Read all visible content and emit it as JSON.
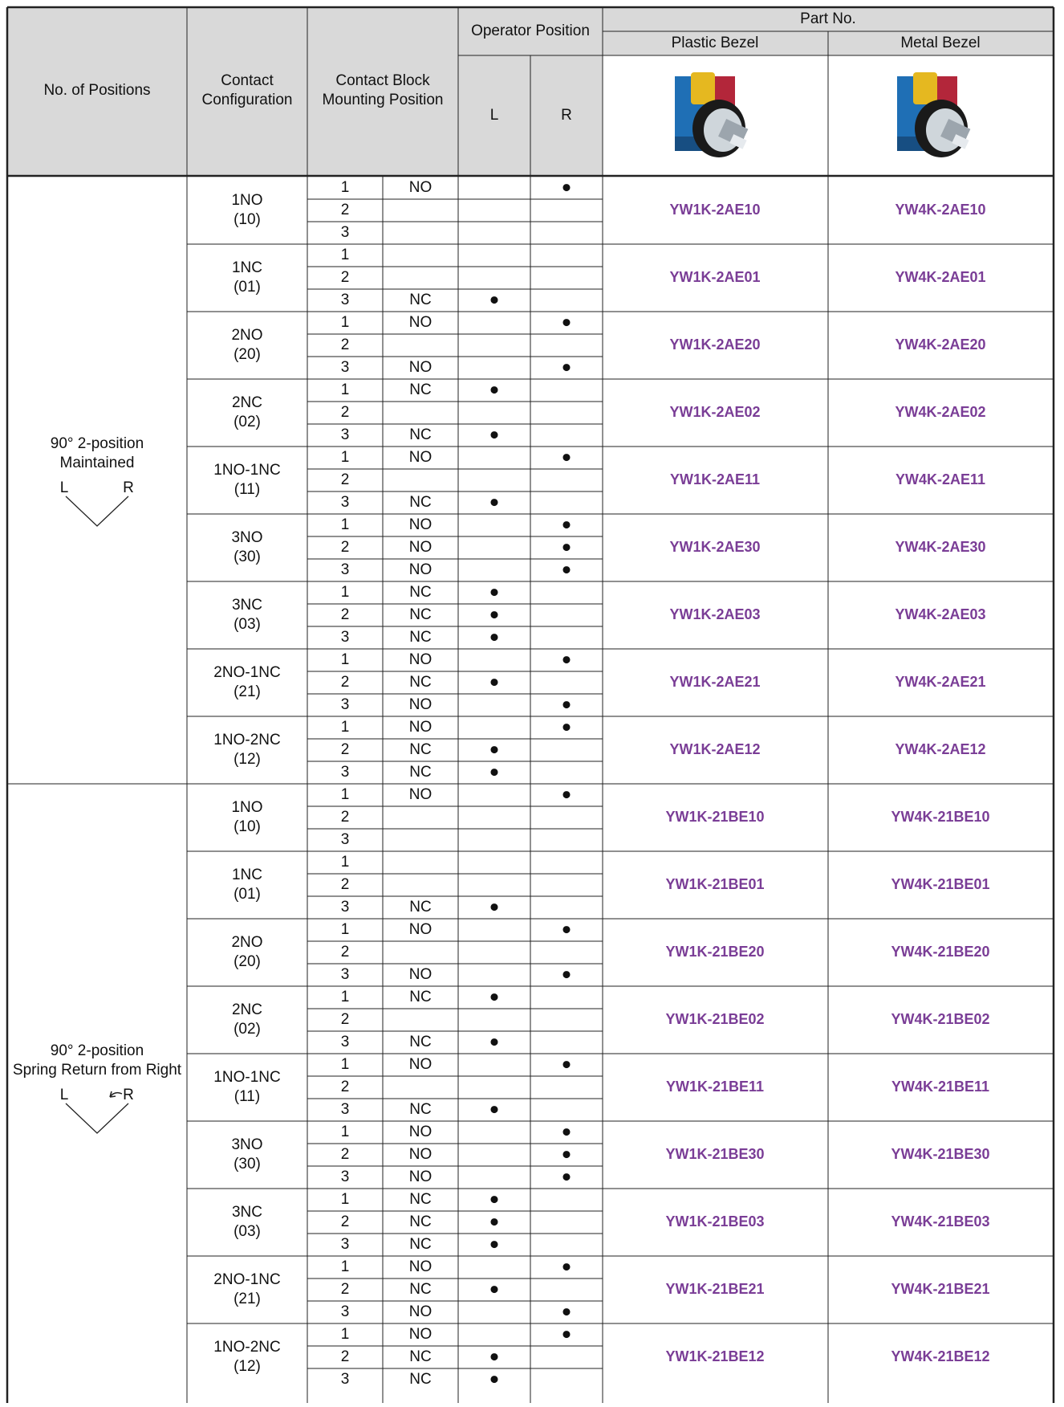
{
  "header": {
    "positions": "No. of Positions",
    "configuration": [
      "Contact",
      "Configuration"
    ],
    "mounting": [
      "Contact Block",
      "Mounting Position"
    ],
    "operator": "Operator Position",
    "left": "L",
    "right": "R",
    "part_no": "Part No.",
    "plastic": "Plastic Bezel",
    "metal": "Metal Bezel"
  },
  "groups": [
    {
      "label": [
        "90° 2-position",
        "Maintained"
      ],
      "left": "L",
      "right": "R",
      "configs": [
        {
          "label": [
            "1NO",
            "(10)"
          ],
          "rows": [
            {
              "position": "1",
              "contact": "NO",
              "R": "●"
            },
            {
              "position": "2"
            },
            {
              "position": "3"
            }
          ],
          "plastic": "YW1K-2AE10",
          "metal": "YW4K-2AE10"
        },
        {
          "label": [
            "1NC",
            "(01)"
          ],
          "rows": [
            {
              "position": "1"
            },
            {
              "position": "2"
            },
            {
              "position": "3",
              "contact": "NC",
              "L": "●"
            }
          ],
          "plastic": "YW1K-2AE01",
          "metal": "YW4K-2AE01"
        },
        {
          "label": [
            "2NO",
            "(20)"
          ],
          "rows": [
            {
              "position": "1",
              "contact": "NO",
              "R": "●"
            },
            {
              "position": "2"
            },
            {
              "position": "3",
              "contact": "NO",
              "R": "●"
            }
          ],
          "plastic": "YW1K-2AE20",
          "metal": "YW4K-2AE20"
        },
        {
          "label": [
            "2NC",
            "(02)"
          ],
          "rows": [
            {
              "position": "1",
              "contact": "NC",
              "L": "●"
            },
            {
              "position": "2"
            },
            {
              "position": "3",
              "contact": "NC",
              "L": "●"
            }
          ],
          "plastic": "YW1K-2AE02",
          "metal": "YW4K-2AE02"
        },
        {
          "label": [
            "1NO-1NC",
            "(11)"
          ],
          "rows": [
            {
              "position": "1",
              "contact": "NO",
              "R": "●"
            },
            {
              "position": "2"
            },
            {
              "position": "3",
              "contact": "NC",
              "L": "●"
            }
          ],
          "plastic": "YW1K-2AE11",
          "metal": "YW4K-2AE11"
        },
        {
          "label": [
            "3NO",
            "(30)"
          ],
          "rows": [
            {
              "position": "1",
              "contact": "NO",
              "R": "●"
            },
            {
              "position": "2",
              "contact": "NO",
              "R": "●"
            },
            {
              "position": "3",
              "contact": "NO",
              "R": "●"
            }
          ],
          "plastic": "YW1K-2AE30",
          "metal": "YW4K-2AE30"
        },
        {
          "label": [
            "3NC",
            "(03)"
          ],
          "rows": [
            {
              "position": "1",
              "contact": "NC",
              "L": "●"
            },
            {
              "position": "2",
              "contact": "NC",
              "L": "●"
            },
            {
              "position": "3",
              "contact": "NC",
              "L": "●"
            }
          ],
          "plastic": "YW1K-2AE03",
          "metal": "YW4K-2AE03"
        },
        {
          "label": [
            "2NO-1NC",
            "(21)"
          ],
          "rows": [
            {
              "position": "1",
              "contact": "NO",
              "R": "●"
            },
            {
              "position": "2",
              "contact": "NC",
              "L": "●"
            },
            {
              "position": "3",
              "contact": "NO",
              "R": "●"
            }
          ],
          "plastic": "YW1K-2AE21",
          "metal": "YW4K-2AE21"
        },
        {
          "label": [
            "1NO-2NC",
            "(12)"
          ],
          "rows": [
            {
              "position": "1",
              "contact": "NO",
              "R": "●"
            },
            {
              "position": "2",
              "contact": "NC",
              "L": "●"
            },
            {
              "position": "3",
              "contact": "NC",
              "L": "●"
            }
          ],
          "plastic": "YW1K-2AE12",
          "metal": "YW4K-2AE12"
        }
      ]
    },
    {
      "label": [
        "90° 2-position",
        "Spring Return from Right"
      ],
      "left": "L",
      "right": "R",
      "configs": [
        {
          "label": [
            "1NO",
            "(10)"
          ],
          "rows": [
            {
              "position": "1",
              "contact": "NO",
              "R": "●"
            },
            {
              "position": "2"
            },
            {
              "position": "3"
            }
          ],
          "plastic": "YW1K-21BE10",
          "metal": "YW4K-21BE10"
        },
        {
          "label": [
            "1NC",
            "(01)"
          ],
          "rows": [
            {
              "position": "1"
            },
            {
              "position": "2"
            },
            {
              "position": "3",
              "contact": "NC",
              "L": "●"
            }
          ],
          "plastic": "YW1K-21BE01",
          "metal": "YW4K-21BE01"
        },
        {
          "label": [
            "2NO",
            "(20)"
          ],
          "rows": [
            {
              "position": "1",
              "contact": "NO",
              "R": "●"
            },
            {
              "position": "2"
            },
            {
              "position": "3",
              "contact": "NO",
              "R": "●"
            }
          ],
          "plastic": "YW1K-21BE20",
          "metal": "YW4K-21BE20"
        },
        {
          "label": [
            "2NC",
            "(02)"
          ],
          "rows": [
            {
              "position": "1",
              "contact": "NC",
              "L": "●"
            },
            {
              "position": "2"
            },
            {
              "position": "3",
              "contact": "NC",
              "L": "●"
            }
          ],
          "plastic": "YW1K-21BE02",
          "metal": "YW4K-21BE02"
        },
        {
          "label": [
            "1NO-1NC",
            "(11)"
          ],
          "rows": [
            {
              "position": "1",
              "contact": "NO",
              "R": "●"
            },
            {
              "position": "2"
            },
            {
              "position": "3",
              "contact": "NC",
              "L": "●"
            }
          ],
          "plastic": "YW1K-21BE11",
          "metal": "YW4K-21BE11"
        },
        {
          "label": [
            "3NO",
            "(30)"
          ],
          "rows": [
            {
              "position": "1",
              "contact": "NO",
              "R": "●"
            },
            {
              "position": "2",
              "contact": "NO",
              "R": "●"
            },
            {
              "position": "3",
              "contact": "NO",
              "R": "●"
            }
          ],
          "plastic": "YW1K-21BE30",
          "metal": "YW4K-21BE30"
        },
        {
          "label": [
            "3NC",
            "(03)"
          ],
          "rows": [
            {
              "position": "1",
              "contact": "NC",
              "L": "●"
            },
            {
              "position": "2",
              "contact": "NC",
              "L": "●"
            },
            {
              "position": "3",
              "contact": "NC",
              "L": "●"
            }
          ],
          "plastic": "YW1K-21BE03",
          "metal": "YW4K-21BE03"
        },
        {
          "label": [
            "2NO-1NC",
            "(21)"
          ],
          "rows": [
            {
              "position": "1",
              "contact": "NO",
              "R": "●"
            },
            {
              "position": "2",
              "contact": "NC",
              "L": "●"
            },
            {
              "position": "3",
              "contact": "NO",
              "R": "●"
            }
          ],
          "plastic": "YW1K-21BE21",
          "metal": "YW4K-21BE21"
        },
        {
          "label": [
            "1NO-2NC",
            "(12)"
          ],
          "rows": [
            {
              "position": "1",
              "contact": "NO",
              "R": "●"
            },
            {
              "position": "2",
              "contact": "NC",
              "L": "●"
            },
            {
              "position": "3",
              "contact": "NC",
              "L": "●"
            }
          ],
          "plastic": "YW1K-21BE12",
          "metal": "YW4K-21BE12"
        }
      ]
    }
  ]
}
